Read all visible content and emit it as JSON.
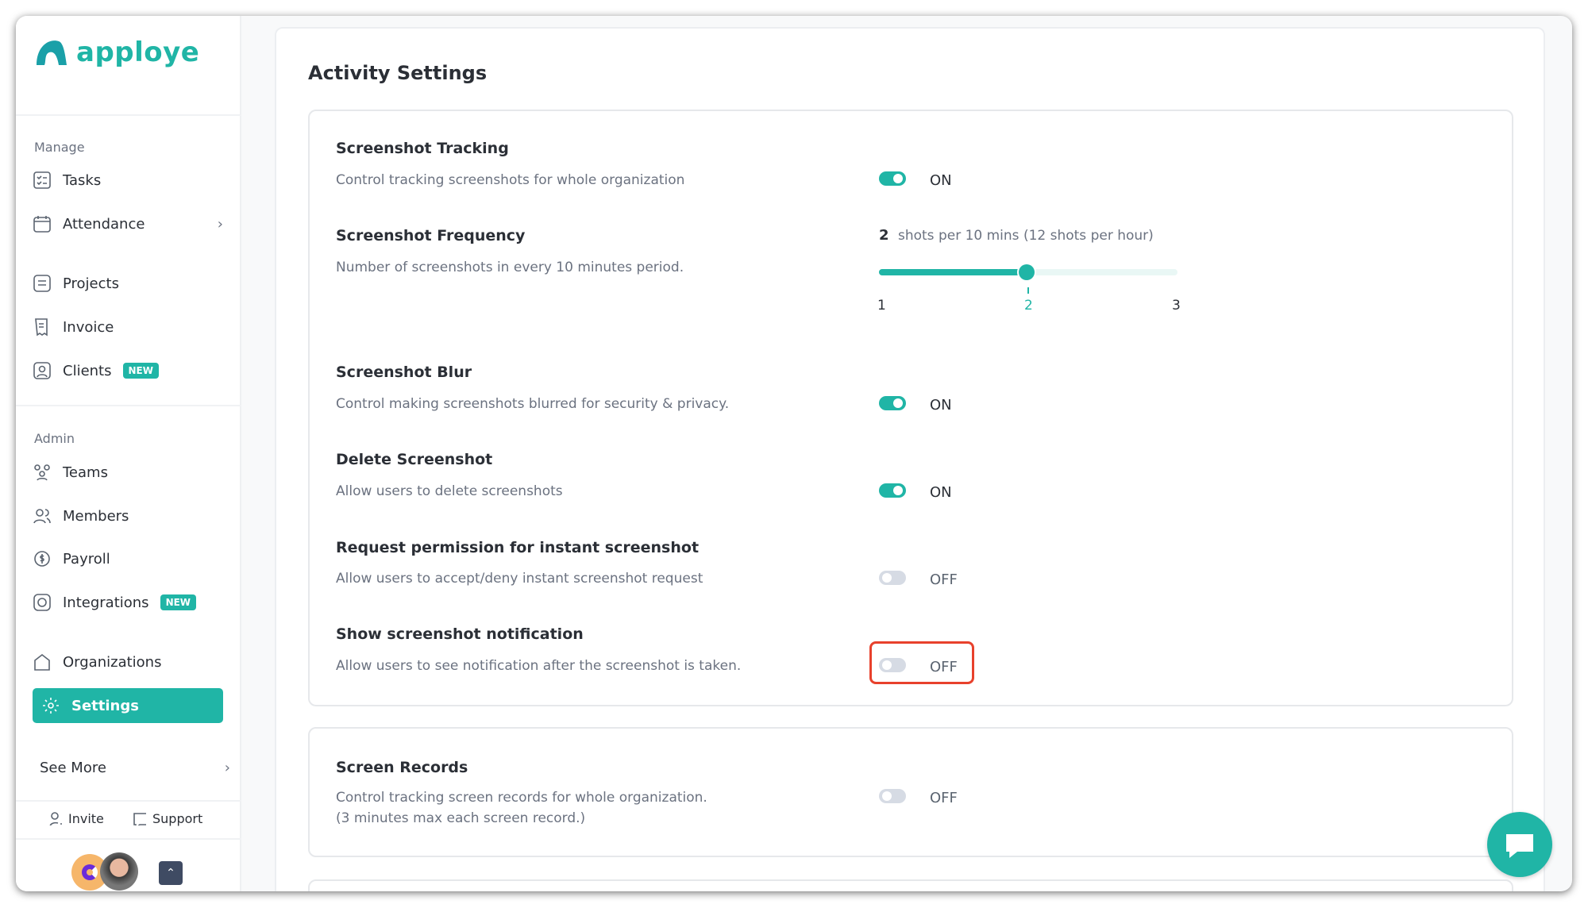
{
  "app": {
    "logo": "apploye",
    "brand_color": "#20b5a6"
  },
  "sidebar": {
    "manage_label": "Manage",
    "manage_items": [
      {
        "label": "Tasks",
        "icon": "tasks-icon"
      },
      {
        "label": "Attendance",
        "icon": "calendar-icon"
      },
      {
        "label": "Projects",
        "icon": "projects-icon"
      },
      {
        "label": "Invoice",
        "icon": "invoice-icon"
      },
      {
        "label": "Clients",
        "icon": "client-icon",
        "badge": "NEW"
      }
    ],
    "admin_label": "Admin",
    "admin_items": [
      {
        "label": "Teams",
        "icon": "teams-icon"
      },
      {
        "label": "Members",
        "icon": "members-icon"
      },
      {
        "label": "Payroll",
        "icon": "payroll-icon"
      },
      {
        "label": "Integrations",
        "icon": "integrations-icon",
        "badge": "NEW"
      }
    ],
    "organizations": "Organizations",
    "settings": "Settings",
    "see_more": "See More",
    "invite": "Invite",
    "support": "Support"
  },
  "page": {
    "title": "Activity Settings"
  },
  "settings": [
    {
      "title": "Screenshot Tracking",
      "desc": "Control tracking screenshots for whole organization",
      "state": "ON"
    },
    {
      "title": "Screenshot Frequency",
      "desc": "Number of screenshots in every 10 minutes period.",
      "value": "2",
      "value_text": "shots per 10 mins (12 shots per hour)",
      "ticks": [
        "1",
        "2",
        "3"
      ]
    },
    {
      "title": "Screenshot Blur",
      "desc": "Control making screenshots blurred for security & privacy.",
      "state": "ON"
    },
    {
      "title": "Delete Screenshot",
      "desc": "Allow users to delete screenshots",
      "state": "ON"
    },
    {
      "title": "Request permission for instant screenshot",
      "desc": "Allow users to accept/deny instant screenshot request",
      "state": "OFF"
    },
    {
      "title": "Show screenshot notification",
      "desc": "Allow users to see notification after the screenshot is taken.",
      "state": "OFF"
    }
  ],
  "screen_records": {
    "title": "Screen Records",
    "desc1": "Control tracking screen records for whole organization.",
    "desc2": "(3 minutes max each screen record.)",
    "state": "OFF"
  }
}
